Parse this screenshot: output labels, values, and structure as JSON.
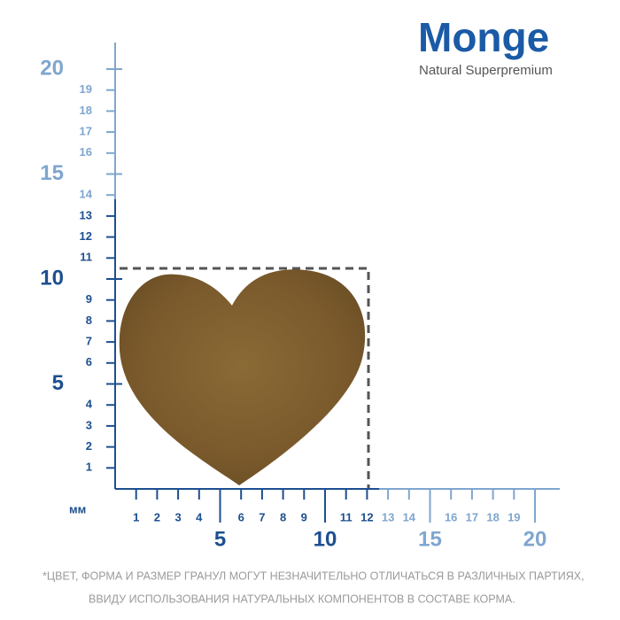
{
  "logo": {
    "brand": "Monge",
    "tagline": "Natural Superpremium"
  },
  "unit": "мм",
  "x_axis": {
    "dark_labels": [
      1,
      2,
      3,
      4,
      6,
      7,
      8,
      9,
      11,
      12
    ],
    "light_labels": [
      13,
      14,
      16,
      17,
      18,
      19
    ],
    "dark_major": [
      5,
      10
    ],
    "light_major": [
      15,
      20
    ]
  },
  "y_axis": {
    "dark_labels": [
      1,
      2,
      3,
      4,
      6,
      7,
      8,
      9,
      11,
      12,
      13
    ],
    "light_labels": [
      14,
      16,
      17,
      18,
      19
    ],
    "dark_major": [
      5,
      10
    ],
    "light_major": [
      15,
      20
    ]
  },
  "footnote": [
    "*ЦВЕТ, ФОРМА И РАЗМЕР ГРАНУЛ МОГУТ НЕЗНАЧИТЕЛЬНО ОТЛИЧАТЬСЯ В РАЗЛИЧНЫХ ПАРТИЯХ,",
    "ВВИДУ ИСПОЛЬЗОВАНИЯ НАТУРАЛЬНЫХ КОМПОНЕНТОВ В СОСТАВЕ КОРМА."
  ]
}
